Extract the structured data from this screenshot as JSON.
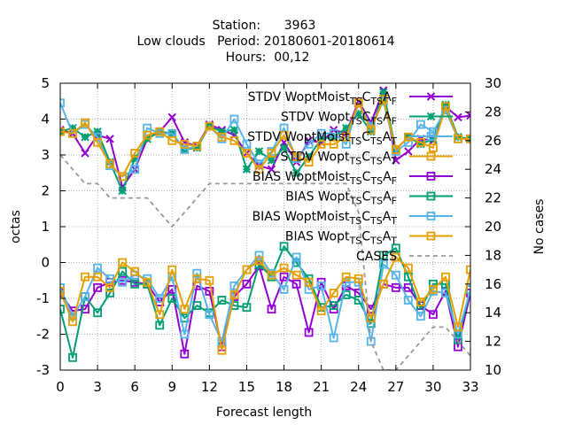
{
  "chart_data": {
    "type": "line",
    "title_lines": [
      "Station:      3963",
      "Low clouds   Period: 20180601-20180614",
      "Hours:  00,12"
    ],
    "xlabel": "Forecast length",
    "ylabel": "octas",
    "y2label": "No cases",
    "xlim": [
      0,
      33
    ],
    "ylim": [
      -3,
      5
    ],
    "y2lim": [
      10,
      30
    ],
    "xticks": [
      0,
      3,
      6,
      9,
      12,
      15,
      18,
      21,
      24,
      27,
      30,
      33
    ],
    "yticks": [
      -3,
      -2,
      -1,
      0,
      1,
      2,
      3,
      4,
      5
    ],
    "y2ticks": [
      10,
      12,
      14,
      16,
      18,
      20,
      22,
      24,
      26,
      28,
      30
    ],
    "grid": true,
    "legend_position": "top-right",
    "x": [
      0,
      1,
      2,
      3,
      4,
      5,
      6,
      7,
      8,
      9,
      10,
      11,
      12,
      13,
      14,
      15,
      16,
      17,
      18,
      19,
      20,
      21,
      22,
      23,
      24,
      25,
      26,
      27,
      28,
      29,
      30,
      31,
      32,
      33
    ],
    "series": [
      {
        "name": "STDV WoptMoist_TSC_TSA_F",
        "legend": {
          "base": "STDV WoptMoist",
          "subs": [
            "TS",
            "C",
            "TS",
            "A",
            "F"
          ]
        },
        "color": "#9400d3",
        "marker": "cross",
        "axis": "y",
        "values": [
          3.7,
          3.6,
          3.05,
          3.55,
          3.45,
          2.1,
          2.6,
          3.45,
          3.65,
          4.05,
          3.35,
          3.25,
          3.85,
          3.7,
          3.55,
          3.05,
          2.7,
          2.6,
          3.35,
          2.8,
          3.4,
          3.35,
          3.7,
          3.6,
          4.5,
          3.9,
          4.8,
          2.85,
          3.1,
          3.45,
          3.4,
          4.35,
          4.05,
          4.1
        ]
      },
      {
        "name": "STDV Wopt_TSC_TSA_F",
        "legend": {
          "base": "STDV Wopt",
          "subs": [
            "TS",
            "C",
            "TS",
            "A",
            "F"
          ]
        },
        "color": "#009e73",
        "marker": "star",
        "axis": "y",
        "values": [
          3.65,
          3.75,
          3.5,
          3.65,
          2.8,
          2.0,
          2.9,
          3.45,
          3.65,
          3.6,
          3.15,
          3.2,
          3.8,
          3.65,
          3.7,
          2.6,
          3.1,
          2.85,
          3.2,
          2.5,
          2.95,
          3.45,
          3.5,
          3.75,
          4.15,
          3.65,
          4.75,
          3.15,
          3.5,
          3.3,
          3.45,
          4.4,
          3.5,
          3.45
        ]
      },
      {
        "name": "STDV WoptMoist_TSC_TSA_T",
        "legend": {
          "base": "STDV WoptMoist",
          "subs": [
            "TS",
            "C",
            "TS",
            "A",
            "T"
          ]
        },
        "color": "#56b4e9",
        "marker": "box",
        "axis": "y",
        "values": [
          4.45,
          3.6,
          3.85,
          3.5,
          2.7,
          2.4,
          2.6,
          3.75,
          3.6,
          3.6,
          3.15,
          3.25,
          3.8,
          3.45,
          4.0,
          3.3,
          2.75,
          3.1,
          3.75,
          2.9,
          3.3,
          3.6,
          3.6,
          3.3,
          4.45,
          3.8,
          4.5,
          3.1,
          3.35,
          3.85,
          3.65,
          4.25,
          3.45,
          3.45
        ]
      },
      {
        "name": "STDV Wopt_TSC_TSA_T",
        "legend": {
          "base": "STDV Wopt",
          "subs": [
            "TS",
            "C",
            "TS",
            "A",
            "T"
          ]
        },
        "color": "#e69f00",
        "marker": "box",
        "axis": "y",
        "values": [
          3.65,
          3.6,
          3.9,
          3.35,
          2.75,
          2.4,
          3.05,
          3.55,
          3.65,
          3.4,
          3.3,
          3.25,
          3.8,
          3.5,
          3.4,
          3.05,
          2.6,
          3.05,
          3.55,
          2.95,
          2.8,
          3.3,
          3.3,
          3.5,
          4.45,
          3.7,
          4.55,
          3.15,
          3.5,
          3.35,
          3.2,
          4.35,
          3.45,
          3.45
        ]
      },
      {
        "name": "BIAS WoptMoist_TSC_TSA_F",
        "legend": {
          "base": "BIAS WoptMoist",
          "subs": [
            "TS",
            "C",
            "TS",
            "A",
            "F"
          ]
        },
        "color": "#9400d3",
        "marker": "box",
        "axis": "y",
        "values": [
          -0.85,
          -1.35,
          -1.3,
          -0.7,
          -0.55,
          -0.5,
          -0.55,
          -0.6,
          -1.1,
          -0.75,
          -2.55,
          -0.65,
          -0.8,
          -2.35,
          -0.95,
          -0.6,
          -0.1,
          -1.3,
          -0.4,
          -0.6,
          -1.95,
          -0.55,
          -1.3,
          -0.65,
          -0.85,
          -1.3,
          -0.6,
          -0.7,
          -0.7,
          -1.2,
          -1.45,
          -0.8,
          -2.35,
          -0.85
        ]
      },
      {
        "name": "BIAS Wopt_TSC_TSA_F",
        "legend": {
          "base": "BIAS Wopt",
          "subs": [
            "TS",
            "C",
            "TS",
            "A",
            "F"
          ]
        },
        "color": "#009e73",
        "marker": "box",
        "axis": "y",
        "values": [
          -1.3,
          -2.65,
          -0.95,
          -1.4,
          -0.85,
          -0.25,
          -0.6,
          -0.6,
          -1.75,
          -1.0,
          -1.55,
          -1.2,
          -1.4,
          -1.05,
          -1.2,
          -1.25,
          -0.05,
          -0.4,
          0.45,
          0.0,
          -0.45,
          -1.25,
          -1.2,
          -0.9,
          -1.05,
          -1.7,
          0.2,
          0.4,
          -0.4,
          -1.3,
          -0.6,
          -0.6,
          -2.15,
          -0.75
        ]
      },
      {
        "name": "BIAS WoptMoist_TSC_TSA_T",
        "legend": {
          "base": "BIAS WoptMoist",
          "subs": [
            "TS",
            "C",
            "TS",
            "A",
            "T"
          ]
        },
        "color": "#56b4e9",
        "marker": "box",
        "axis": "y",
        "values": [
          -0.7,
          -1.5,
          -0.95,
          -0.15,
          -0.45,
          -0.55,
          -0.35,
          -0.45,
          -1.0,
          -0.4,
          -2.0,
          -0.3,
          -1.45,
          -2.2,
          -0.65,
          -0.2,
          0.2,
          -0.3,
          -0.75,
          0.15,
          -0.75,
          -0.65,
          -2.1,
          -0.55,
          -0.55,
          -2.2,
          -0.05,
          -0.35,
          -1.05,
          -1.5,
          -0.8,
          -0.85,
          -2.0,
          -0.75
        ]
      },
      {
        "name": "BIAS Wopt_TSC_TSA_T",
        "legend": {
          "base": "BIAS Wopt",
          "subs": [
            "TS",
            "C",
            "TS",
            "A",
            "T"
          ]
        },
        "color": "#e69f00",
        "marker": "box",
        "axis": "y",
        "values": [
          -0.8,
          -1.65,
          -0.4,
          -0.4,
          -0.7,
          0.0,
          -0.25,
          -0.55,
          -1.45,
          -0.2,
          -1.3,
          -0.45,
          -0.5,
          -2.45,
          -0.9,
          -0.2,
          0.05,
          -0.35,
          -0.15,
          -0.35,
          -0.55,
          -1.35,
          -0.85,
          -0.4,
          -0.45,
          -1.55,
          -0.6,
          0.15,
          -0.15,
          -1.1,
          -0.75,
          -0.4,
          -1.8,
          -0.2
        ]
      },
      {
        "name": "CASES",
        "legend": {
          "base": "CASES",
          "subs": []
        },
        "color": "#999999",
        "marker": "none",
        "dash": true,
        "axis": "y2",
        "values": [
          25,
          24,
          23,
          23,
          22,
          22,
          22,
          22,
          21,
          20,
          21,
          22,
          23,
          23,
          23,
          23,
          23,
          23,
          23,
          23,
          23,
          23,
          23,
          23,
          21,
          12,
          10,
          10,
          11,
          12,
          13,
          13,
          12,
          11
        ]
      }
    ]
  }
}
